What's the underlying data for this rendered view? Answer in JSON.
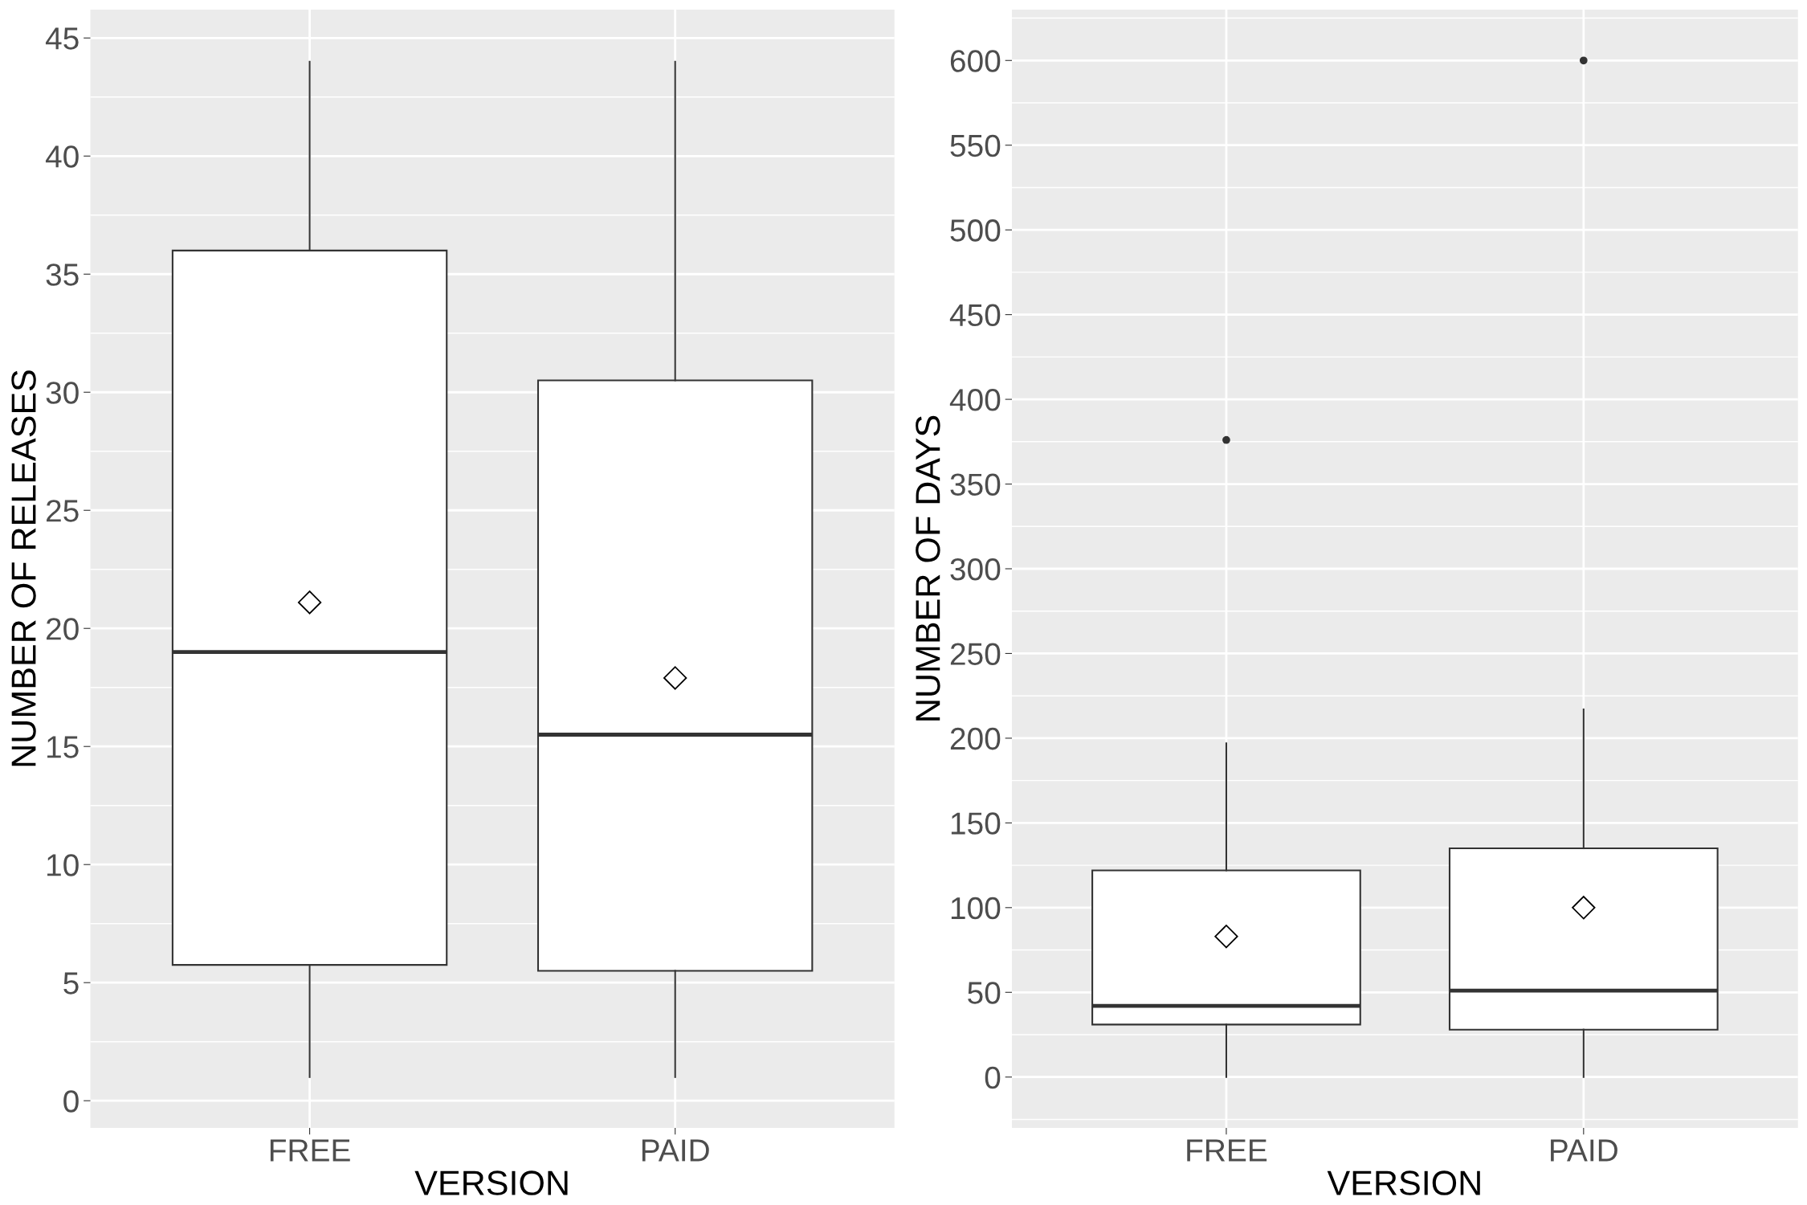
{
  "chart_data": [
    {
      "type": "box",
      "xlabel": "VERSION",
      "ylabel": "NUMBER OF RELEASES",
      "categories": [
        "FREE",
        "PAID"
      ],
      "boxes": [
        {
          "low": 1,
          "q1": 5.75,
          "median": 19,
          "q3": 36,
          "high": 44,
          "mean": 21.1
        },
        {
          "low": 1,
          "q1": 5.5,
          "median": 15.5,
          "q3": 30.5,
          "high": 44,
          "mean": 17.9
        }
      ],
      "ylim": [
        -1.15,
        46.2
      ],
      "yticks": [
        0,
        5,
        10,
        15,
        20,
        25,
        30,
        35,
        40,
        45
      ],
      "grid": true,
      "marker": "diamond"
    },
    {
      "type": "box",
      "xlabel": "VERSION",
      "ylabel": "NUMBER OF DAYS",
      "categories": [
        "FREE",
        "PAID"
      ],
      "boxes": [
        {
          "low": 0,
          "q1": 31,
          "median": 42,
          "q3": 122,
          "high": 197,
          "mean": 83,
          "outliers": [
            376
          ]
        },
        {
          "low": 0,
          "q1": 28,
          "median": 51,
          "q3": 135,
          "high": 217,
          "mean": 100,
          "outliers": [
            600
          ]
        }
      ],
      "ylim": [
        -30,
        630
      ],
      "yticks": [
        0,
        50,
        100,
        150,
        200,
        250,
        300,
        350,
        400,
        450,
        500,
        550,
        600
      ],
      "grid": true,
      "marker": "diamond"
    }
  ]
}
